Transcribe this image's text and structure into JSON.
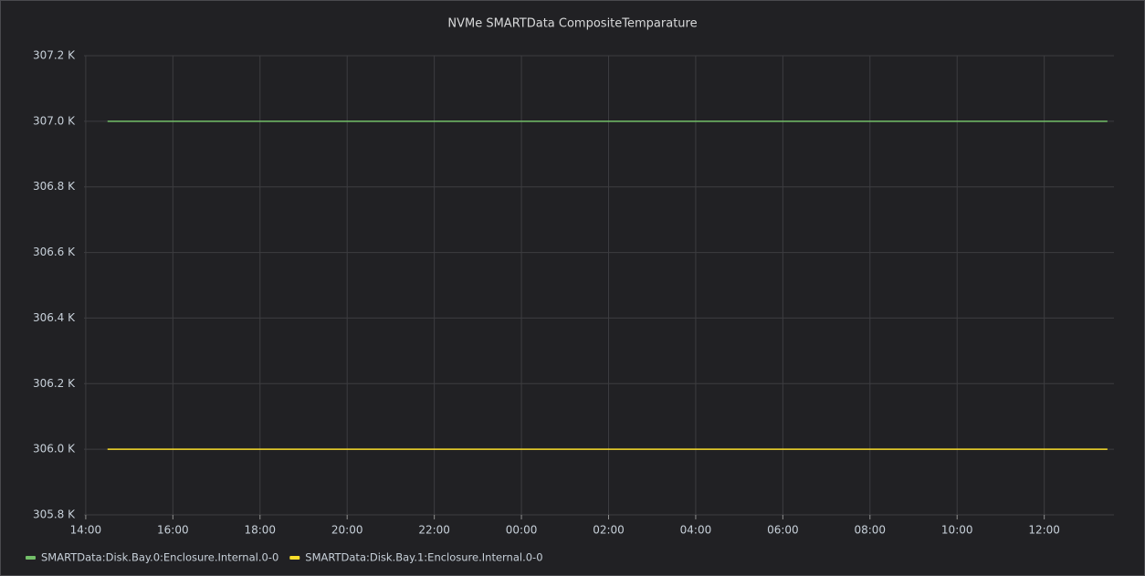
{
  "chart_data": {
    "type": "line",
    "title": "NVMe SMARTData CompositeTemparature",
    "x": [
      14.5,
      37.45
    ],
    "series": [
      {
        "name": "SMARTData:Disk.Bay.0:Enclosure.Internal.0-0",
        "color": "#73bf69",
        "values": [
          307.0,
          307.0
        ]
      },
      {
        "name": "SMARTData:Disk.Bay.1:Enclosure.Internal.0-0",
        "color": "#fade2a",
        "values": [
          306.0,
          306.0
        ]
      }
    ],
    "xlim": [
      13.96,
      37.6
    ],
    "xticks": [
      {
        "value": 14,
        "label": "14:00"
      },
      {
        "value": 16,
        "label": "16:00"
      },
      {
        "value": 18,
        "label": "18:00"
      },
      {
        "value": 20,
        "label": "20:00"
      },
      {
        "value": 22,
        "label": "22:00"
      },
      {
        "value": 24,
        "label": "00:00"
      },
      {
        "value": 26,
        "label": "02:00"
      },
      {
        "value": 28,
        "label": "04:00"
      },
      {
        "value": 30,
        "label": "06:00"
      },
      {
        "value": 32,
        "label": "08:00"
      },
      {
        "value": 34,
        "label": "10:00"
      },
      {
        "value": 36,
        "label": "12:00"
      }
    ],
    "ylim": [
      305.8,
      307.2
    ],
    "yticks": [
      {
        "value": 305.8,
        "label": "305.8 K"
      },
      {
        "value": 306.0,
        "label": "306.0 K"
      },
      {
        "value": 306.2,
        "label": "306.2 K"
      },
      {
        "value": 306.4,
        "label": "306.4 K"
      },
      {
        "value": 306.6,
        "label": "306.6 K"
      },
      {
        "value": 306.8,
        "label": "306.8 K"
      },
      {
        "value": 307.0,
        "label": "307.0 K"
      },
      {
        "value": 307.2,
        "label": "307.2 K"
      }
    ],
    "grid": true
  }
}
